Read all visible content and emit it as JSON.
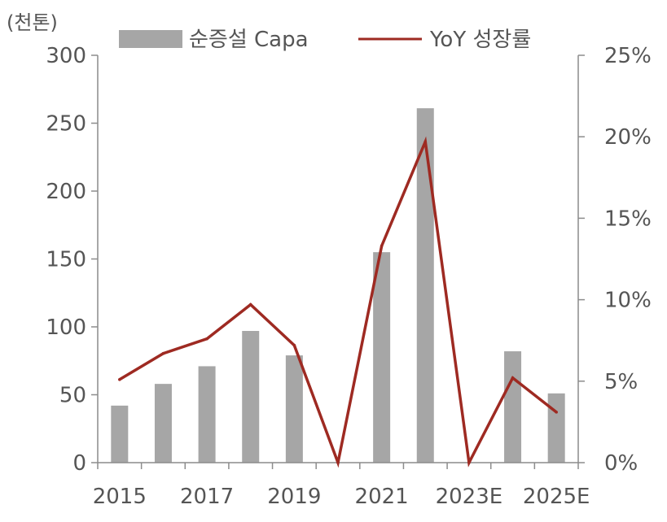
{
  "chart_data": {
    "type": "bar",
    "unit_label": "(천톤)",
    "categories": [
      "2015",
      "2016",
      "2017",
      "2018",
      "2019",
      "2020",
      "2021",
      "2022",
      "2023E",
      "2024E",
      "2025E"
    ],
    "x_tick_labels": [
      "2015",
      "2017",
      "2019",
      "2021",
      "2023E",
      "2025E"
    ],
    "series": [
      {
        "name": "순증설 Capa",
        "type": "bar",
        "axis": "left",
        "color": "#a6a6a6",
        "values": [
          42,
          58,
          71,
          97,
          79,
          0,
          155,
          261,
          0,
          82,
          51
        ]
      },
      {
        "name": "YoY 성장률",
        "type": "line",
        "axis": "right",
        "color": "#9e2a22",
        "values": [
          5.1,
          6.7,
          7.6,
          9.7,
          7.2,
          0.0,
          13.3,
          19.7,
          0.0,
          5.2,
          3.1
        ]
      }
    ],
    "y_left": {
      "min": 0,
      "max": 300,
      "ticks": [
        0,
        50,
        100,
        150,
        200,
        250,
        300
      ]
    },
    "y_right": {
      "min": 0,
      "max": 25,
      "ticks": [
        "0%",
        "5%",
        "10%",
        "15%",
        "20%",
        "25%"
      ]
    },
    "grid": false,
    "legend_position": "top"
  }
}
